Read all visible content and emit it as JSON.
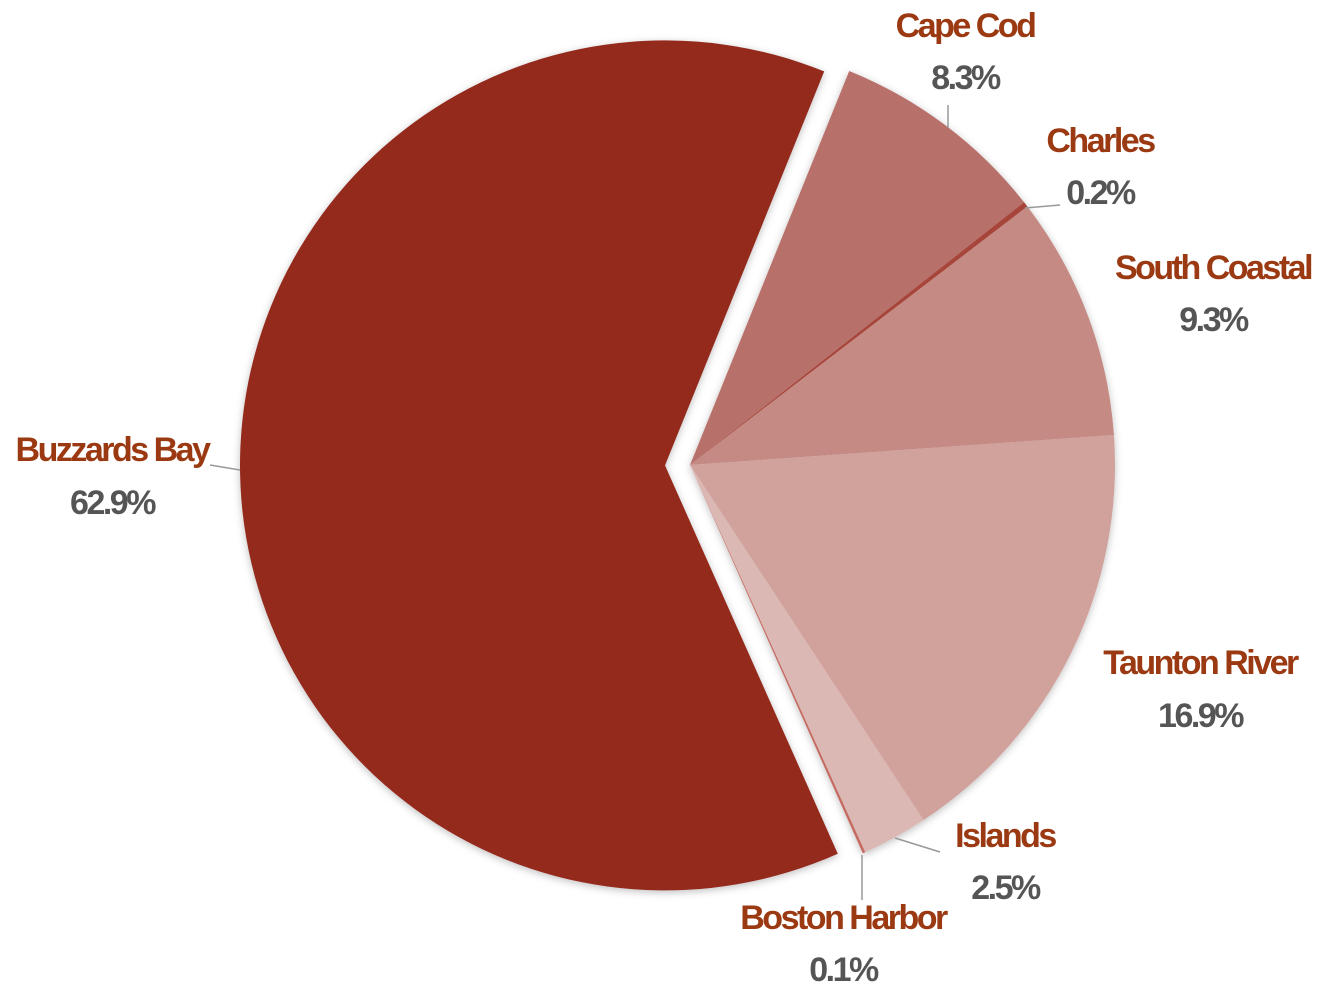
{
  "chart_data": {
    "type": "pie",
    "categories": [
      "Cape Cod",
      "Charles",
      "South Coastal",
      "Taunton River",
      "Islands",
      "Boston Harbor",
      "Buzzards Bay"
    ],
    "values": [
      8.3,
      0.2,
      9.3,
      16.9,
      2.5,
      0.1,
      62.9
    ],
    "value_labels": [
      "8.3%",
      "0.2%",
      "9.3%",
      "16.9%",
      "2.5%",
      "0.1%",
      "62.9%"
    ],
    "colors": [
      "#b8716a",
      "#a8443a",
      "#c48a83",
      "#d1a19c",
      "#dcb8b4",
      "#c56a60",
      "#93291f"
    ],
    "explode": [
      false,
      false,
      false,
      false,
      false,
      false,
      true
    ]
  }
}
